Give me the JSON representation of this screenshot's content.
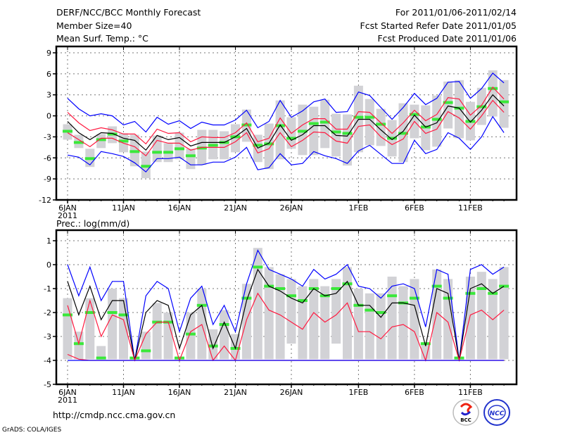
{
  "header": {
    "title": "DERF/NCC/BCC Monthly Forecast",
    "member_size": "Member Size=40",
    "variable": "Mean Surf. Temp.: °C",
    "period": "For 2011/01/06-2011/02/14",
    "started": "Fcst Started Refer Date 2011/01/05",
    "produced": "Fcst Produced Date 2011/01/06"
  },
  "footer": {
    "url": "http://cmdp.ncc.cma.gov.cn",
    "credit": "GrADS: COLA/IGES",
    "logos": [
      "BCC",
      "NCC"
    ]
  },
  "colors": {
    "envelope": "#0000ff",
    "spread": "#ff1a40",
    "mean": "#000000",
    "marker": "#3ae83a",
    "bar": "#d2d2d6"
  },
  "chart_data": [
    {
      "type": "line",
      "title": "Mean Surf. Temp.: °C",
      "ylim": [
        -12,
        9
      ],
      "yticks": [
        9,
        6,
        3,
        0,
        -3,
        -6,
        -9,
        -12
      ],
      "xticks": [
        {
          "i": 0,
          "label": "6JAN",
          "sub": "2011"
        },
        {
          "i": 5,
          "label": "11JAN"
        },
        {
          "i": 10,
          "label": "16JAN"
        },
        {
          "i": 15,
          "label": "21JAN"
        },
        {
          "i": 20,
          "label": "26JAN"
        },
        {
          "i": 26,
          "label": "1FEB"
        },
        {
          "i": 31,
          "label": "6FEB"
        },
        {
          "i": 36,
          "label": "11FEB"
        }
      ],
      "grid": true,
      "days": 40,
      "bars_max": [
        -1.2,
        -2.7,
        -4.7,
        -2.6,
        -1.5,
        -2.5,
        -2.7,
        -5.1,
        -2.8,
        -3.9,
        -2.4,
        -4.7,
        -2.0,
        -2.0,
        -2.2,
        -1.2,
        0.9,
        -2.7,
        -1.1,
        2.2,
        -0.2,
        1.6,
        1.3,
        2.3,
        0.3,
        0.2,
        4.3,
        2.4,
        1.0,
        -0.6,
        1.8,
        1.6,
        1.5,
        2.9,
        4.9,
        5.1,
        2.0,
        4.0,
        6.5,
        5.1
      ],
      "bars_min": [
        -3.4,
        -4.6,
        -7.3,
        -4.6,
        -3.9,
        -5.2,
        -7.2,
        -8.9,
        -6.6,
        -6.6,
        -6.2,
        -7.6,
        -7.0,
        -6.2,
        -6.2,
        -5.2,
        -3.7,
        -6.6,
        -7.6,
        -6.2,
        -4.7,
        -5.6,
        -5.6,
        -4.6,
        -5.8,
        -7.1,
        -5.2,
        -4.2,
        -4.3,
        -5.8,
        -6.6,
        -3.2,
        -4.9,
        -4.4,
        -1.8,
        -3.2,
        -3.5,
        -1.3,
        -0.1,
        -1.7
      ],
      "series": [
        {
          "name": "max",
          "color_key": "envelope",
          "values": [
            2.5,
            1.0,
            0,
            0.3,
            0,
            -1.3,
            -0.8,
            -2.3,
            -0.2,
            -1.2,
            -0.7,
            -1.8,
            -0.9,
            -1.3,
            -1.3,
            -0.6,
            0.8,
            -1.7,
            -0.8,
            2.2,
            -0.2,
            0.7,
            2.0,
            2.4,
            0.5,
            0.6,
            3.4,
            2.9,
            1.2,
            -0.5,
            1.2,
            3.2,
            1.6,
            2.5,
            4.8,
            4.9,
            2.5,
            3.9,
            6.1,
            4.7
          ]
        },
        {
          "name": "upper",
          "color_key": "spread",
          "values": [
            0.5,
            -1.0,
            -2.1,
            -1.7,
            -2.0,
            -2.6,
            -2.6,
            -4.0,
            -1.9,
            -2.5,
            -2.4,
            -3.7,
            -3.0,
            -3.1,
            -3.1,
            -2.4,
            -1.0,
            -3.7,
            -3.2,
            -0.3,
            -2.5,
            -1.3,
            -0.4,
            -0.4,
            -1.9,
            -1.9,
            0.6,
            0.5,
            -1.0,
            -2.5,
            -1.0,
            0.8,
            -0.7,
            0.2,
            2.6,
            2.4,
            0.1,
            1.5,
            4.1,
            2.4
          ]
        },
        {
          "name": "mean",
          "color_key": "mean",
          "values": [
            -0.8,
            -2.4,
            -3.4,
            -2.4,
            -2.5,
            -3.2,
            -3.5,
            -4.9,
            -2.8,
            -3.4,
            -3.1,
            -4.3,
            -3.8,
            -3.8,
            -3.8,
            -3.0,
            -1.8,
            -4.6,
            -3.9,
            -1.3,
            -3.5,
            -2.7,
            -1.4,
            -1.4,
            -2.8,
            -2.9,
            -0.5,
            -0.5,
            -2.0,
            -3.4,
            -2.2,
            0.1,
            -1.6,
            -1.0,
            1.4,
            1.1,
            -0.9,
            0.8,
            3.0,
            1.4
          ]
        },
        {
          "name": "lower",
          "color_key": "spread",
          "values": [
            -2.4,
            -3.4,
            -4.4,
            -3.2,
            -3.2,
            -3.9,
            -4.4,
            -5.7,
            -3.5,
            -3.9,
            -3.9,
            -4.9,
            -4.5,
            -4.5,
            -4.5,
            -3.7,
            -2.4,
            -5.3,
            -4.7,
            -2.4,
            -4.4,
            -3.5,
            -2.3,
            -2.4,
            -3.6,
            -3.9,
            -1.5,
            -1.3,
            -3.0,
            -4.1,
            -3.3,
            -0.8,
            -2.5,
            -1.9,
            0.6,
            -0.3,
            -1.9,
            0,
            2.2,
            0.5
          ]
        },
        {
          "name": "min",
          "color_key": "envelope",
          "values": [
            -5.6,
            -5.9,
            -7.0,
            -5.1,
            -5.4,
            -5.8,
            -6.7,
            -8.0,
            -6.1,
            -6.1,
            -5.9,
            -7.0,
            -7.0,
            -6.6,
            -6.6,
            -5.9,
            -4.5,
            -7.7,
            -7.4,
            -5.4,
            -7.0,
            -6.8,
            -5.1,
            -5.7,
            -6.1,
            -6.8,
            -5.0,
            -4.2,
            -5.5,
            -6.8,
            -6.8,
            -3.5,
            -5.4,
            -4.8,
            -2.4,
            -3.2,
            -4.8,
            -3.0,
            -0.1,
            -2.4
          ]
        }
      ],
      "markers": [
        -2.2,
        -3.8,
        -6.1,
        -3.4,
        -2.6,
        -3.6,
        -5.1,
        -7.2,
        -5.2,
        -5.2,
        -4.7,
        -5.7,
        -4.6,
        -4.2,
        -3.8,
        -3.0,
        -1.3,
        -4.2,
        -4.0,
        -1.4,
        -3.2,
        -2.2,
        -1.1,
        -0.9,
        -2.3,
        -2.5,
        -0.2,
        -0.2,
        -1.2,
        -3.2,
        -2.5,
        0.2,
        -1.6,
        -0.5,
        1.9,
        1.1,
        -0.8,
        1.3,
        3.9,
        2.0
      ]
    },
    {
      "type": "line",
      "title": "Prec.: log(mm/d)",
      "ylim": [
        -5,
        1
      ],
      "yticks": [
        1,
        0,
        -1,
        -2,
        -3,
        -4,
        -5
      ],
      "xticks": [
        {
          "i": 0,
          "label": "6JAN",
          "sub": "2011"
        },
        {
          "i": 5,
          "label": "11JAN"
        },
        {
          "i": 10,
          "label": "16JAN"
        },
        {
          "i": 15,
          "label": "21JAN"
        },
        {
          "i": 20,
          "label": "26JAN"
        },
        {
          "i": 26,
          "label": "1FEB"
        },
        {
          "i": 31,
          "label": "6FEB"
        },
        {
          "i": 36,
          "label": "11FEB"
        }
      ],
      "grid": true,
      "days": 40,
      "bars_max": [
        -1.4,
        -2.8,
        -1.4,
        -3.4,
        -1.0,
        -1.4,
        -4.0,
        -2.8,
        -1.6,
        -2.0,
        -4.0,
        -2.0,
        -1.0,
        -2.7,
        -1.9,
        -2.9,
        -0.8,
        0.7,
        -0.1,
        -0.4,
        -0.6,
        -0.9,
        -0.6,
        -0.9,
        -0.6,
        -0.1,
        -1.0,
        -1.2,
        -1.2,
        -0.5,
        -0.9,
        -0.6,
        -3.3,
        -0.2,
        -0.6,
        -4.0,
        -0.5,
        -0.3,
        -0.6,
        -0.1
      ],
      "bars_min": [
        -3.95,
        -3.95,
        -3.95,
        -3.95,
        -3.95,
        -3.95,
        -4.0,
        -3.95,
        -3.95,
        -3.95,
        -4.0,
        -3.95,
        -3.95,
        -3.95,
        -3.95,
        -3.95,
        -3.95,
        -3.95,
        -3.95,
        -3.95,
        -3.3,
        -3.95,
        -3.95,
        -3.95,
        -3.3,
        -3.95,
        -3.95,
        -3.95,
        -3.95,
        -3.95,
        -3.95,
        -3.95,
        -3.95,
        -3.95,
        -3.95,
        -4.0,
        -3.95,
        -3.95,
        -3.95,
        -3.95
      ],
      "series": [
        {
          "name": "max",
          "color_key": "envelope",
          "values": [
            0,
            -1.3,
            -0.1,
            -1.5,
            -0.7,
            -0.7,
            -4.0,
            -1.3,
            -0.7,
            -1.0,
            -2.8,
            -1.4,
            -0.9,
            -2.5,
            -1.7,
            -2.8,
            -0.8,
            0.6,
            -0.2,
            -0.4,
            -0.6,
            -0.9,
            -0.2,
            -0.6,
            -0.4,
            0.0,
            -0.9,
            -1.0,
            -1.4,
            -0.9,
            -0.8,
            -1.0,
            -2.6,
            -0.2,
            -0.4,
            -4.0,
            -0.2,
            0.0,
            -0.4,
            -0.1
          ]
        },
        {
          "name": "mean",
          "color_key": "mean",
          "values": [
            -0.7,
            -2.1,
            -0.9,
            -2.3,
            -1.5,
            -1.5,
            -4.0,
            -2.0,
            -1.5,
            -1.7,
            -3.5,
            -2.1,
            -1.7,
            -3.5,
            -2.4,
            -3.5,
            -1.5,
            -0.2,
            -0.9,
            -1.1,
            -1.4,
            -1.6,
            -1.0,
            -1.3,
            -1.2,
            -0.7,
            -1.7,
            -1.7,
            -2.2,
            -1.6,
            -1.6,
            -1.7,
            -3.4,
            -1.0,
            -1.2,
            -4.0,
            -1.0,
            -0.8,
            -1.2,
            -0.9
          ]
        },
        {
          "name": "upper",
          "color_key": "spread",
          "values": [
            -1.7,
            -3.3,
            -1.5,
            -3.0,
            -2.1,
            -2.3,
            -4.0,
            -2.9,
            -2.4,
            -2.4,
            -4.0,
            -2.8,
            -2.5,
            -4.0,
            -3.4,
            -4.0,
            -2.3,
            -1.2,
            -1.9,
            -2.1,
            -2.4,
            -2.7,
            -2.0,
            -2.4,
            -2.1,
            -1.6,
            -2.8,
            -2.8,
            -3.1,
            -2.6,
            -2.5,
            -2.8,
            -4.0,
            -2.0,
            -2.4,
            -4.0,
            -2.1,
            -1.9,
            -2.3,
            -1.9
          ]
        },
        {
          "name": "lower",
          "color_key": "spread",
          "values": [
            -3.75,
            -3.95,
            -4,
            -4,
            -4,
            -4,
            -4,
            -4,
            -4,
            -4,
            -4,
            -4,
            -4,
            -4,
            -4,
            -4,
            -4,
            -4,
            -4,
            -4,
            -4,
            -4,
            -4,
            -4,
            -4,
            -4,
            -4,
            -4,
            -4,
            -4,
            -4,
            -4,
            -4,
            -4,
            -4,
            -4,
            -4,
            -4,
            -4,
            -4
          ]
        },
        {
          "name": "min",
          "color_key": "envelope",
          "values": [
            -4,
            -4,
            -4,
            -4,
            -4,
            -4,
            -4,
            -4,
            -4,
            -4,
            -4,
            -4,
            -4,
            -4,
            -4,
            -4,
            -4,
            -4,
            -4,
            -4,
            -4,
            -4,
            -4,
            -4,
            -4,
            -4,
            -4,
            -4,
            -4,
            -4,
            -4,
            -4,
            -4,
            -4,
            -4,
            -4,
            -4,
            -4,
            -4,
            -4
          ]
        }
      ],
      "markers": [
        -2.1,
        -3.3,
        -2.0,
        -3.9,
        -2.0,
        -2.1,
        -3.9,
        -3.6,
        -2.4,
        -2.4,
        -3.9,
        -2.9,
        -1.7,
        -3.4,
        -2.5,
        -3.5,
        -1.4,
        -0.1,
        -0.9,
        -1.0,
        -1.3,
        -1.5,
        -1.0,
        -1.3,
        -1.0,
        -0.8,
        -1.7,
        -1.9,
        -2.0,
        -1.3,
        -1.6,
        -1.4,
        -3.3,
        -0.9,
        -1.4,
        -3.9,
        -1.2,
        -1.0,
        -1.2,
        -0.9
      ]
    }
  ]
}
